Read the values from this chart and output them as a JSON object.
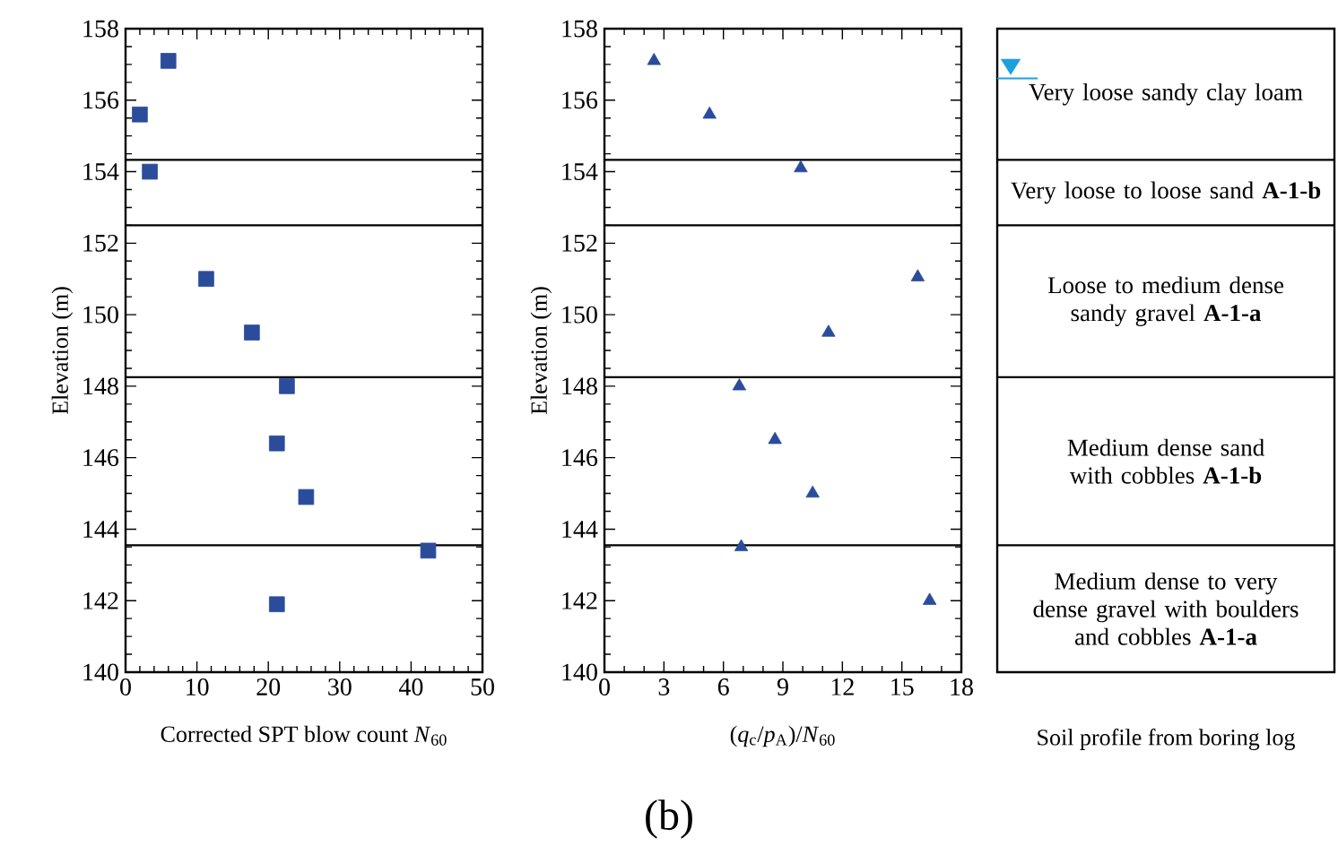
{
  "chart_data": [
    {
      "type": "scatter",
      "xlabel": "Corrected SPT blow count *N*$_{60}$",
      "ylabel": "Elevation (m)",
      "x": [
        6,
        2,
        3.4,
        11.3,
        17.7,
        22.6,
        21.2,
        25.3,
        42.4,
        21.2
      ],
      "values": [
        157.1,
        155.6,
        154.0,
        151.0,
        149.5,
        148.0,
        146.4,
        144.9,
        143.4,
        141.9
      ],
      "color": "#2b4c9b",
      "marker": "square",
      "xlim": [
        0,
        50
      ],
      "xticks": [
        0,
        10,
        20,
        30,
        40,
        50
      ],
      "ylim": [
        140,
        158
      ],
      "yticks": [
        140,
        142,
        144,
        146,
        148,
        150,
        152,
        154,
        156,
        158
      ],
      "ref_lines": [
        {
          "axis": "y",
          "value": 154.33
        },
        {
          "axis": "y",
          "value": 152.5
        },
        {
          "axis": "y",
          "value": 148.25
        },
        {
          "axis": "y",
          "value": 143.55
        }
      ]
    },
    {
      "type": "scatter",
      "xlabel": "(*q*$_{c}$/*p*$_{A}$)/*N*$_{60}$",
      "ylabel": "Elevation (m)",
      "x": [
        2.5,
        5.3,
        9.9,
        15.8,
        11.3,
        6.8,
        8.6,
        10.5,
        6.9,
        16.4
      ],
      "values": [
        157.1,
        155.6,
        154.1,
        151.05,
        149.5,
        148.0,
        146.5,
        145.0,
        143.5,
        142.0
      ],
      "color": "#2b4c9b",
      "marker": "triangle",
      "xlim": [
        0,
        18
      ],
      "xticks": [
        0,
        3,
        6,
        9,
        12,
        15,
        18
      ],
      "ylim": [
        140,
        158
      ],
      "yticks": [
        140,
        142,
        144,
        146,
        148,
        150,
        152,
        154,
        156,
        158
      ],
      "ref_lines": [
        {
          "axis": "y",
          "value": 154.33
        },
        {
          "axis": "y",
          "value": 152.5
        },
        {
          "axis": "y",
          "value": 148.25
        },
        {
          "axis": "y",
          "value": 143.55
        }
      ]
    },
    {
      "type": "other",
      "xlabel": "Soil profile from boring log",
      "categories": [
        "Very loose sandy clay loam",
        "Very loose to loose sand **A-1-b**",
        "Loose to medium dense sandy gravel **A-1-a**",
        "Medium dense sand with cobbles **A-1-b**",
        "Medium dense to very dense gravel with boulders and cobbles **A-1-a**"
      ],
      "annotations": [
        "(b)"
      ]
    }
  ]
}
